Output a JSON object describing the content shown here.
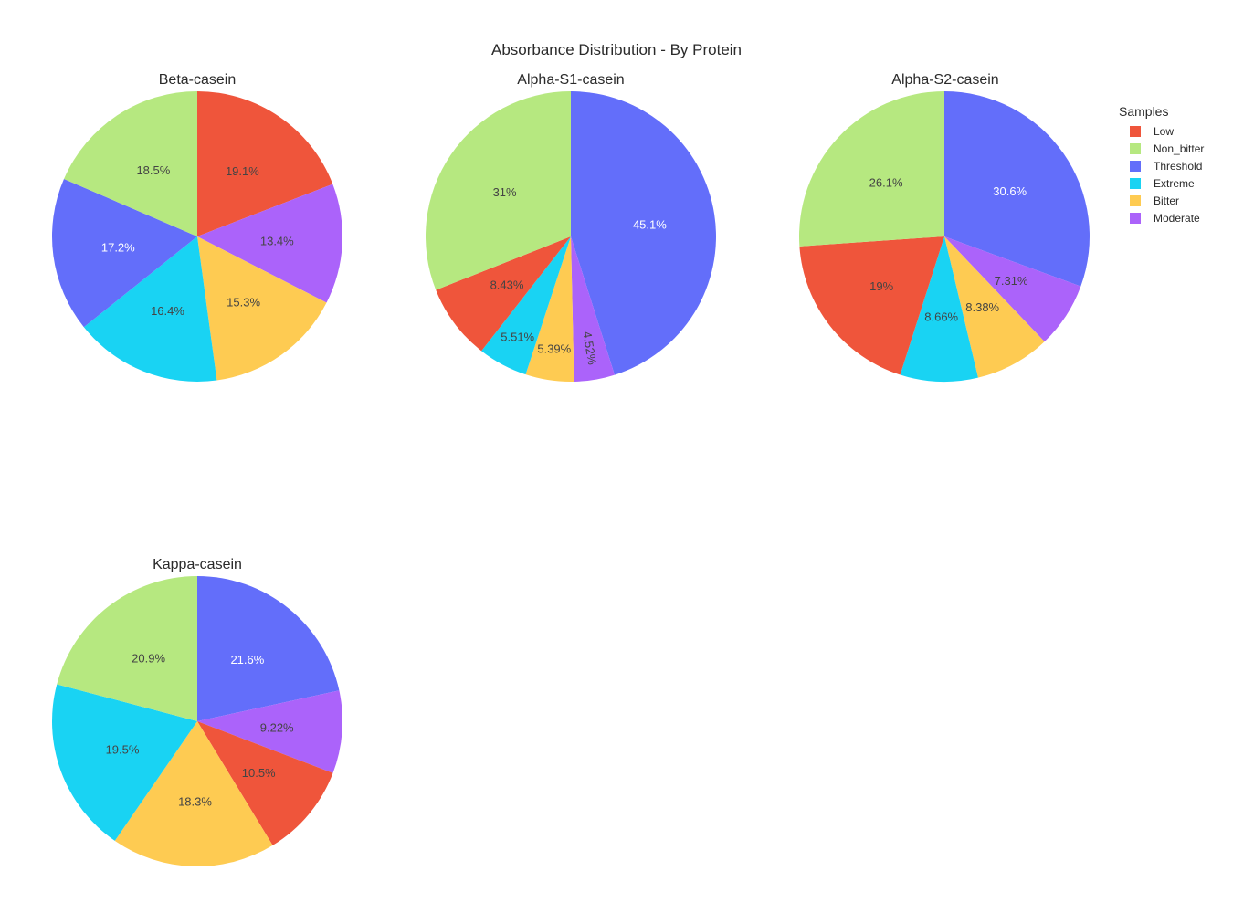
{
  "chart_data": {
    "type": "pie",
    "title": "Absorbance Distribution - By Protein",
    "legend": {
      "title": "Samples",
      "placement": "top-right",
      "entries": [
        "Low",
        "Non_bitter",
        "Threshold",
        "Extreme",
        "Bitter",
        "Moderate"
      ]
    },
    "colors": {
      "Low": "#EF553B",
      "Non_bitter": "#B6E880",
      "Threshold": "#636EFA",
      "Extreme": "#19D3F3",
      "Bitter": "#FECB52",
      "Moderate": "#AB63FA"
    },
    "pies": [
      {
        "name": "Beta-casein",
        "slices": [
          {
            "label": "Low",
            "value": 19.1,
            "text": "19.1%"
          },
          {
            "label": "Moderate",
            "value": 13.4,
            "text": "13.4%"
          },
          {
            "label": "Bitter",
            "value": 15.3,
            "text": "15.3%"
          },
          {
            "label": "Extreme",
            "value": 16.4,
            "text": "16.4%"
          },
          {
            "label": "Threshold",
            "value": 17.2,
            "text": "17.2%"
          },
          {
            "label": "Non_bitter",
            "value": 18.5,
            "text": "18.5%"
          }
        ]
      },
      {
        "name": "Alpha-S1-casein",
        "slices": [
          {
            "label": "Threshold",
            "value": 45.1,
            "text": "45.1%"
          },
          {
            "label": "Moderate",
            "value": 4.52,
            "text": "4.52%"
          },
          {
            "label": "Bitter",
            "value": 5.39,
            "text": "5.39%"
          },
          {
            "label": "Extreme",
            "value": 5.51,
            "text": "5.51%"
          },
          {
            "label": "Low",
            "value": 8.43,
            "text": "8.43%"
          },
          {
            "label": "Non_bitter",
            "value": 31,
            "text": "31%"
          }
        ]
      },
      {
        "name": "Alpha-S2-casein",
        "slices": [
          {
            "label": "Threshold",
            "value": 30.6,
            "text": "30.6%"
          },
          {
            "label": "Moderate",
            "value": 7.31,
            "text": "7.31%"
          },
          {
            "label": "Bitter",
            "value": 8.38,
            "text": "8.38%"
          },
          {
            "label": "Extreme",
            "value": 8.66,
            "text": "8.66%"
          },
          {
            "label": "Low",
            "value": 19,
            "text": "19%"
          },
          {
            "label": "Non_bitter",
            "value": 26.1,
            "text": "26.1%"
          }
        ]
      },
      {
        "name": "Kappa-casein",
        "slices": [
          {
            "label": "Threshold",
            "value": 21.6,
            "text": "21.6%"
          },
          {
            "label": "Moderate",
            "value": 9.22,
            "text": "9.22%"
          },
          {
            "label": "Low",
            "value": 10.5,
            "text": "10.5%"
          },
          {
            "label": "Bitter",
            "value": 18.3,
            "text": "18.3%"
          },
          {
            "label": "Extreme",
            "value": 19.5,
            "text": "19.5%"
          },
          {
            "label": "Non_bitter",
            "value": 20.9,
            "text": "20.9%"
          }
        ]
      }
    ]
  }
}
